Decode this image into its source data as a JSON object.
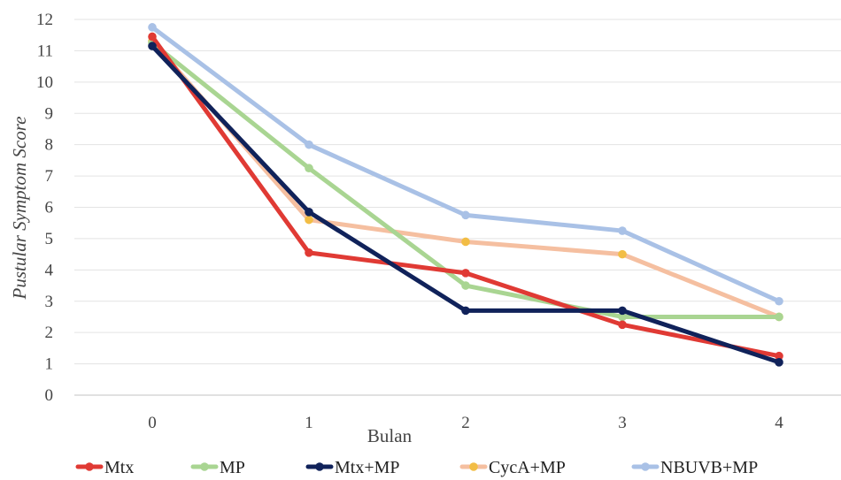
{
  "chart_data": {
    "type": "line",
    "title": "",
    "xlabel": "Bulan",
    "ylabel": "Pustular Symptom Score",
    "x": [
      "0",
      "1",
      "2",
      "3",
      "4"
    ],
    "yticks": [
      "0",
      "1",
      "2",
      "3",
      "4",
      "5",
      "6",
      "7",
      "8",
      "9",
      "10",
      "11",
      "12"
    ],
    "ylim": [
      0,
      12
    ],
    "grid": true,
    "legend": "bottom",
    "series": [
      {
        "name": "NBUVB+MP",
        "color": "#a9c1e6",
        "values": [
          11.75,
          8.0,
          5.75,
          5.25,
          3.0
        ]
      },
      {
        "name": "CycA+MP",
        "color": "#f5bfa0",
        "marker": "#f2bd45",
        "values": [
          11.3,
          5.6,
          4.9,
          4.5,
          2.5
        ]
      },
      {
        "name": "MP",
        "color": "#a9d592",
        "values": [
          11.25,
          7.25,
          3.5,
          2.5,
          2.5
        ]
      },
      {
        "name": "Mtx",
        "color": "#e03a34",
        "values": [
          11.45,
          4.55,
          3.9,
          2.25,
          1.25
        ]
      },
      {
        "name": "Mtx+MP",
        "color": "#10225a",
        "values": [
          11.15,
          5.85,
          2.7,
          2.7,
          1.05
        ]
      }
    ],
    "legend_order": [
      "Mtx",
      "MP",
      "Mtx+MP",
      "CycA+MP",
      "NBUVB+MP"
    ]
  }
}
